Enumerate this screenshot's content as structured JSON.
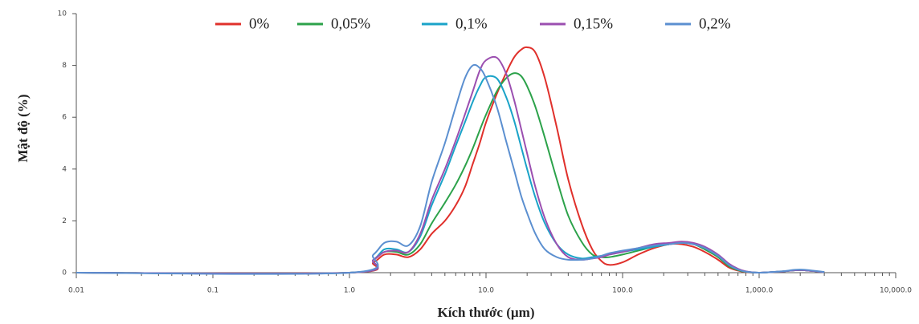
{
  "chart_data": {
    "type": "line",
    "xlabel": "Kích thước (µm)",
    "ylabel": "Mật độ (%)",
    "xscale": "log",
    "minor_ticks": true,
    "grid": false,
    "legend": "top",
    "xlim": [
      0.01,
      10000
    ],
    "ylim": [
      0,
      10
    ],
    "xticks": [
      0.01,
      0.1,
      {
        "value": 1,
        "label": "1.0"
      },
      {
        "value": 10,
        "label": "10.0"
      },
      {
        "value": 100,
        "label": "100.0"
      },
      {
        "value": 1000,
        "label": "1,000.0"
      },
      {
        "value": 10000,
        "label": "10,000.0"
      }
    ],
    "yticks": [
      0,
      2,
      4,
      6,
      8,
      10
    ],
    "x": [
      0.01,
      1,
      1.5,
      1.8,
      2.2,
      2.7,
      3.3,
      4,
      5,
      6,
      7,
      8,
      9,
      10,
      12,
      14,
      16,
      18,
      20,
      23,
      27,
      33,
      40,
      50,
      60,
      70,
      80,
      100,
      130,
      170,
      220,
      270,
      330,
      400,
      500,
      600,
      700,
      800,
      1000,
      1500,
      2000,
      3000
    ],
    "series": [
      {
        "name": "0%",
        "color": "#e0302b",
        "values": [
          0,
          0,
          0.4,
          0.7,
          0.7,
          0.6,
          0.9,
          1.5,
          2.0,
          2.6,
          3.3,
          4.2,
          5.0,
          5.8,
          6.9,
          7.7,
          8.3,
          8.6,
          8.7,
          8.5,
          7.5,
          5.6,
          3.6,
          1.9,
          0.9,
          0.45,
          0.3,
          0.4,
          0.7,
          0.95,
          1.1,
          1.1,
          1.0,
          0.8,
          0.5,
          0.2,
          0.08,
          0.02,
          0,
          0.05,
          0.1,
          0.02
        ]
      },
      {
        "name": "0,05%",
        "color": "#2ca24a",
        "values": [
          0,
          0,
          0.5,
          0.8,
          0.8,
          0.7,
          1.1,
          1.9,
          2.7,
          3.4,
          4.1,
          4.8,
          5.5,
          6.1,
          7.0,
          7.5,
          7.7,
          7.6,
          7.2,
          6.4,
          5.2,
          3.6,
          2.2,
          1.2,
          0.7,
          0.6,
          0.6,
          0.7,
          0.85,
          1.0,
          1.1,
          1.15,
          1.1,
          0.9,
          0.6,
          0.25,
          0.1,
          0.03,
          0,
          0.05,
          0.1,
          0.02
        ]
      },
      {
        "name": "0,1%",
        "color": "#1aa3c8",
        "values": [
          0,
          0,
          0.5,
          0.9,
          0.9,
          0.8,
          1.4,
          2.6,
          3.8,
          4.9,
          5.8,
          6.6,
          7.2,
          7.55,
          7.5,
          6.8,
          5.9,
          4.9,
          4.0,
          2.9,
          1.9,
          1.1,
          0.7,
          0.55,
          0.6,
          0.65,
          0.7,
          0.8,
          0.9,
          1.0,
          1.1,
          1.15,
          1.1,
          0.95,
          0.65,
          0.3,
          0.12,
          0.04,
          0,
          0.05,
          0.1,
          0.02
        ]
      },
      {
        "name": "0,15%",
        "color": "#9b4fb0",
        "values": [
          0,
          0,
          0.5,
          0.8,
          0.85,
          0.8,
          1.5,
          2.8,
          4.0,
          5.1,
          6.1,
          7.0,
          7.8,
          8.2,
          8.3,
          7.7,
          6.7,
          5.6,
          4.6,
          3.3,
          2.1,
          1.1,
          0.6,
          0.5,
          0.55,
          0.6,
          0.7,
          0.8,
          0.95,
          1.1,
          1.15,
          1.2,
          1.15,
          1.0,
          0.7,
          0.35,
          0.15,
          0.05,
          0,
          0.05,
          0.1,
          0.02
        ]
      },
      {
        "name": "0,2%",
        "color": "#5b8fd0",
        "values": [
          0,
          0,
          0.7,
          1.15,
          1.2,
          1.05,
          1.8,
          3.5,
          5.0,
          6.4,
          7.5,
          8.0,
          7.9,
          7.5,
          6.4,
          5.1,
          4.0,
          3.0,
          2.3,
          1.5,
          0.9,
          0.6,
          0.5,
          0.5,
          0.55,
          0.65,
          0.75,
          0.85,
          0.95,
          1.05,
          1.1,
          1.15,
          1.1,
          0.95,
          0.65,
          0.3,
          0.12,
          0.04,
          0,
          0.06,
          0.12,
          0.03
        ]
      }
    ]
  }
}
